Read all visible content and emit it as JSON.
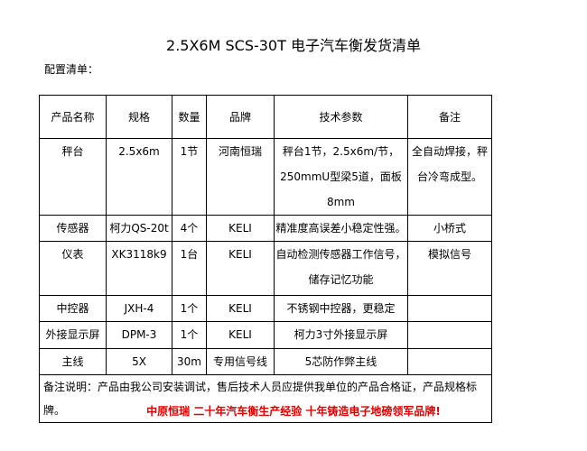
{
  "title": "2.5X6M SCS-30T 电子汽车衡发货清单",
  "subtitle": "配置清单：",
  "table": {
    "headers": [
      "产品名称",
      "规格",
      "数量",
      "品牌",
      "技术参数",
      "备注"
    ],
    "rows": [
      {
        "name": "秤台",
        "spec": "2.5x6m",
        "qty": "1节",
        "brand": "河南恒瑞",
        "tech": [
          "秤台1节，2.5x6m/节，",
          "250mmU型梁5道，面板8mm"
        ],
        "remark": [
          "全自动焊接，秤",
          "台冷弯成型。"
        ]
      },
      {
        "name": "传感器",
        "spec": "柯力QS-20t",
        "qty": "4个",
        "brand": "KELI",
        "tech": [
          "精准度高误差小稳定性强。"
        ],
        "remark": [
          "小桥式"
        ]
      },
      {
        "name": "仪表",
        "spec": "XK3118k9",
        "qty": "1台",
        "brand": "KELI",
        "tech": [
          "自动检测传感器工作信号，",
          "储存记忆功能"
        ],
        "remark": [
          "模拟信号"
        ]
      },
      {
        "name": "中控器",
        "spec": "JXH-4",
        "qty": "1个",
        "brand": "KELI",
        "tech": [
          "不锈钢中控器，更稳定"
        ],
        "remark": [
          ""
        ]
      },
      {
        "name": "外接显示屏",
        "spec": "DPM-3",
        "qty": "1个",
        "brand": "KELI",
        "tech": [
          "柯力3寸外接显示屏"
        ],
        "remark": [
          ""
        ]
      },
      {
        "name": "主线",
        "spec": "5X",
        "qty": "30m",
        "brand": "专用信号线",
        "tech": [
          "5芯防作弊主线"
        ],
        "remark": [
          ""
        ]
      }
    ],
    "note": "备注说明：产品由我公司安装调试，售后技术人员应提供我单位的产品合格证，产品规格标牌。"
  },
  "slogan": "中原恒瑞  二十年汽车衡生产经验  十年铸造电子地磅领军品牌!",
  "colors": {
    "slogan": "#e00000"
  }
}
